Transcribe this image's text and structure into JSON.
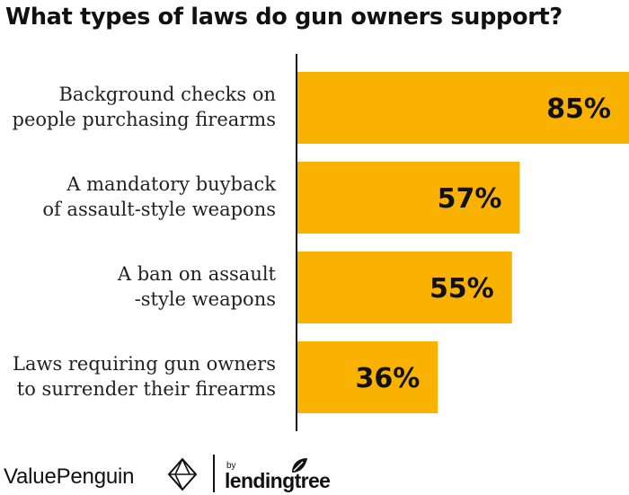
{
  "chart_data": {
    "type": "bar",
    "orientation": "horizontal",
    "title": "What types of laws do gun owners support?",
    "categories": [
      [
        "Background checks on",
        "people purchasing firearms"
      ],
      [
        "A mandatory buyback",
        "of assault-style weapons"
      ],
      [
        "A ban on assault",
        "-style weapons"
      ],
      [
        "Laws requiring gun owners",
        "to surrender their firearms"
      ]
    ],
    "values": [
      85,
      57,
      55,
      36
    ],
    "value_labels": [
      "85%",
      "57%",
      "55%",
      "36%"
    ],
    "xlim": [
      0,
      85
    ],
    "bar_color": "#F9B200",
    "grid": false
  },
  "footer": {
    "brand": "ValuePenguin",
    "by": "by",
    "partner": "lendingtree"
  }
}
